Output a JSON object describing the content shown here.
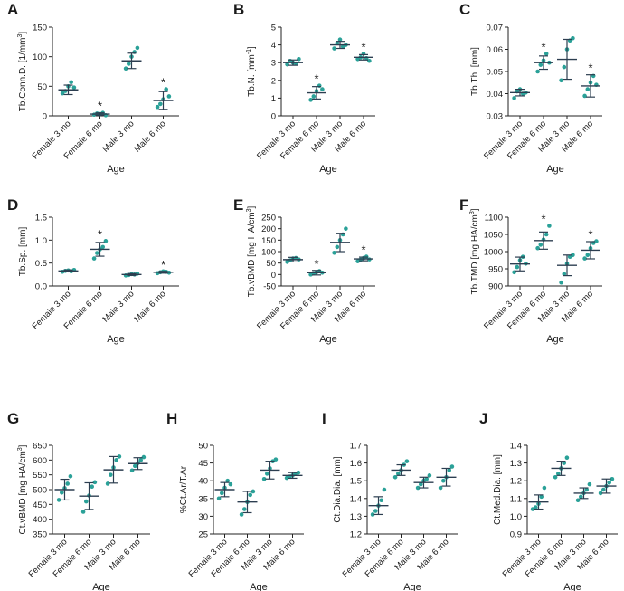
{
  "colors": {
    "point": "#2aa198",
    "bar": "#2c3e50",
    "axis": "#222222"
  },
  "chart_data": [
    {
      "type": "scatter",
      "panel": "A",
      "ylabel": "Tb.Conn.D. [1/mm",
      "ylabel_sup": "3",
      "ylabel_end": "]",
      "xlabel": "Age",
      "categories": [
        "Female 3 mo",
        "Female 6 mo",
        "Male 3 mo",
        "Male 6 mo"
      ],
      "yticks": [
        "0",
        "50",
        "100",
        "150"
      ],
      "yticks_val": [
        0,
        50,
        100,
        150
      ],
      "ylim": [
        0,
        150
      ],
      "means": [
        44,
        3,
        93,
        26
      ],
      "sd": [
        8,
        2,
        13,
        15
      ],
      "points": [
        [
          38,
          42,
          50,
          57,
          48
        ],
        [
          2,
          4,
          3,
          5,
          1
        ],
        [
          80,
          88,
          100,
          108,
          115
        ],
        [
          15,
          20,
          28,
          45,
          33
        ]
      ],
      "significance": [
        "",
        "*",
        "",
        "*"
      ]
    },
    {
      "type": "scatter",
      "panel": "B",
      "ylabel": "Tb.N. [mm",
      "ylabel_sup": "-1",
      "ylabel_end": "]",
      "xlabel": "Age",
      "categories": [
        "Female 3 mo",
        "Female 6 mo",
        "Male 3 mo",
        "Male 6 mo"
      ],
      "yticks": [
        "0",
        "1",
        "2",
        "3",
        "4",
        "5"
      ],
      "yticks_val": [
        0,
        1,
        2,
        3,
        4,
        5
      ],
      "ylim": [
        0,
        5
      ],
      "means": [
        3.0,
        1.3,
        4.0,
        3.3
      ],
      "sd": [
        0.15,
        0.35,
        0.2,
        0.15
      ],
      "points": [
        [
          2.9,
          3.1,
          3.0,
          2.95,
          3.2
        ],
        [
          0.9,
          1.1,
          1.4,
          1.7,
          1.5
        ],
        [
          3.8,
          4.1,
          4.3,
          3.9,
          4.0
        ],
        [
          3.2,
          3.3,
          3.5,
          3.25,
          3.1
        ]
      ],
      "significance": [
        "",
        "*",
        "",
        "*"
      ]
    },
    {
      "type": "scatter",
      "panel": "C",
      "ylabel": "Tb.Th. [mm]",
      "ylabel_sup": "",
      "ylabel_end": "",
      "xlabel": "Age",
      "categories": [
        "Female 3 mo",
        "Female 6 mo",
        "Male 3 mo",
        "Male 6 mo"
      ],
      "yticks": [
        "0.03",
        "0.04",
        "0.05",
        "0.06",
        "0.07"
      ],
      "yticks_val": [
        0.03,
        0.04,
        0.05,
        0.06,
        0.07
      ],
      "ylim": [
        0.03,
        0.07
      ],
      "means": [
        0.0405,
        0.054,
        0.0555,
        0.0435
      ],
      "sd": [
        0.0015,
        0.003,
        0.009,
        0.005
      ],
      "points": [
        [
          0.038,
          0.041,
          0.042,
          0.04,
          0.0405
        ],
        [
          0.05,
          0.053,
          0.055,
          0.058,
          0.054
        ],
        [
          0.046,
          0.052,
          0.06,
          0.064,
          0.065
        ],
        [
          0.039,
          0.042,
          0.045,
          0.048,
          0.044
        ]
      ],
      "significance": [
        "",
        "*",
        "",
        "*"
      ]
    },
    {
      "type": "scatter",
      "panel": "D",
      "ylabel": "Tb.Sp. [mm]",
      "ylabel_sup": "",
      "ylabel_end": "",
      "xlabel": "Age",
      "categories": [
        "Female 3 mo",
        "Female 6 mo",
        "Male 3 mo",
        "Male 6 mo"
      ],
      "yticks": [
        "0.0",
        "0.5",
        "1.0",
        "1.5"
      ],
      "yticks_val": [
        0.0,
        0.5,
        1.0,
        1.5
      ],
      "ylim": [
        0,
        1.5
      ],
      "means": [
        0.33,
        0.8,
        0.25,
        0.3
      ],
      "sd": [
        0.02,
        0.15,
        0.02,
        0.02
      ],
      "points": [
        [
          0.31,
          0.33,
          0.34,
          0.32,
          0.35
        ],
        [
          0.6,
          0.72,
          0.8,
          0.85,
          0.98
        ],
        [
          0.23,
          0.24,
          0.26,
          0.25,
          0.27
        ],
        [
          0.28,
          0.3,
          0.32,
          0.31,
          0.29
        ]
      ],
      "significance": [
        "",
        "*",
        "",
        "*"
      ]
    },
    {
      "type": "scatter",
      "panel": "E",
      "ylabel": "Tb.vBMD [mg HA/cm",
      "ylabel_sup": "3",
      "ylabel_end": "]",
      "xlabel": "Age",
      "categories": [
        "Female 3 mo",
        "Female 6 mo",
        "Male 3 mo",
        "Male 6 mo"
      ],
      "yticks": [
        "-50",
        "0",
        "50",
        "100",
        "150",
        "200",
        "250"
      ],
      "yticks_val": [
        -50,
        0,
        50,
        100,
        150,
        200,
        250
      ],
      "ylim": [
        -50,
        250
      ],
      "means": [
        65,
        8,
        140,
        68
      ],
      "sd": [
        10,
        10,
        40,
        8
      ],
      "points": [
        [
          55,
          62,
          70,
          72,
          66
        ],
        [
          0,
          5,
          10,
          15,
          8
        ],
        [
          95,
          120,
          150,
          175,
          200
        ],
        [
          58,
          65,
          72,
          78,
          66
        ]
      ],
      "significance": [
        "",
        "*",
        "",
        "*"
      ]
    },
    {
      "type": "scatter",
      "panel": "F",
      "ylabel": "Tb.TMD [mg HA/cm",
      "ylabel_sup": "3",
      "ylabel_end": "]",
      "xlabel": "Age",
      "categories": [
        "Female 3 mo",
        "Female 6 mo",
        "Male 3 mo",
        "Male 6 mo"
      ],
      "yticks": [
        "900",
        "950",
        "1000",
        "1050",
        "1100"
      ],
      "yticks_val": [
        900,
        950,
        1000,
        1050,
        1100
      ],
      "ylim": [
        900,
        1100
      ],
      "means": [
        964,
        1032,
        960,
        1004
      ],
      "sd": [
        20,
        25,
        30,
        25
      ],
      "points": [
        [
          940,
          955,
          975,
          985,
          965
        ],
        [
          1010,
          1020,
          1035,
          1050,
          1075
        ],
        [
          910,
          935,
          965,
          985,
          990
        ],
        [
          980,
          990,
          1010,
          1025,
          1030
        ]
      ],
      "significance": [
        "",
        "*",
        "",
        "*"
      ]
    },
    {
      "type": "scatter",
      "panel": "G",
      "ylabel": "Ct.vBMD [mg HA/cm",
      "ylabel_sup": "3",
      "ylabel_end": "]",
      "xlabel": "Age",
      "categories": [
        "Female 3 mo",
        "Female 6 mo",
        "Male 3 mo",
        "Male 6 mo"
      ],
      "yticks": [
        "350",
        "400",
        "450",
        "500",
        "550",
        "600",
        "650"
      ],
      "yticks_val": [
        350,
        400,
        450,
        500,
        550,
        600,
        650
      ],
      "ylim": [
        350,
        650
      ],
      "means": [
        500,
        478,
        567,
        588
      ],
      "sd": [
        35,
        45,
        45,
        20
      ],
      "points": [
        [
          465,
          490,
          505,
          520,
          545
        ],
        [
          425,
          460,
          480,
          510,
          525
        ],
        [
          520,
          550,
          575,
          600,
          612
        ],
        [
          565,
          580,
          590,
          600,
          610
        ]
      ],
      "significance": [
        "",
        "",
        "",
        ""
      ]
    },
    {
      "type": "scatter",
      "panel": "H",
      "ylabel": "%Ct.Ar/T.Ar",
      "ylabel_sup": "",
      "ylabel_end": "",
      "xlabel": "Age",
      "categories": [
        "Female 3 mo",
        "Female 6 mo",
        "Male 3 mo",
        "Male 6 mo"
      ],
      "yticks": [
        "25",
        "30",
        "35",
        "40",
        "45",
        "50"
      ],
      "yticks_val": [
        25,
        30,
        35,
        40,
        45,
        50
      ],
      "ylim": [
        25,
        50
      ],
      "means": [
        37.5,
        34,
        43,
        41.5
      ],
      "sd": [
        2,
        3,
        2.5,
        0.8
      ],
      "points": [
        [
          35,
          36.5,
          38,
          40,
          39
        ],
        [
          30.5,
          32,
          34,
          36,
          37
        ],
        [
          40.5,
          42,
          43.5,
          45.5,
          46
        ],
        [
          40.8,
          41.2,
          41.5,
          42,
          42.3
        ]
      ],
      "significance": [
        "",
        "",
        "",
        ""
      ]
    },
    {
      "type": "scatter",
      "panel": "I",
      "ylabel": "Ct.Dia.Dia. [mm]",
      "ylabel_sup": "",
      "ylabel_end": "",
      "xlabel": "Age",
      "categories": [
        "Female 3 mo",
        "Female 6 mo",
        "Male 3 mo",
        "Male 6 mo"
      ],
      "yticks": [
        "1.2",
        "1.3",
        "1.4",
        "1.5",
        "1.6",
        "1.7"
      ],
      "yticks_val": [
        1.2,
        1.3,
        1.4,
        1.5,
        1.6,
        1.7
      ],
      "ylim": [
        1.2,
        1.7
      ],
      "means": [
        1.36,
        1.56,
        1.49,
        1.52
      ],
      "sd": [
        0.05,
        0.03,
        0.03,
        0.05
      ],
      "points": [
        [
          1.31,
          1.33,
          1.36,
          1.39,
          1.45
        ],
        [
          1.52,
          1.54,
          1.56,
          1.59,
          1.61
        ],
        [
          1.46,
          1.48,
          1.5,
          1.51,
          1.53
        ],
        [
          1.46,
          1.5,
          1.52,
          1.56,
          1.58
        ]
      ],
      "significance": [
        "",
        "",
        "",
        ""
      ]
    },
    {
      "type": "scatter",
      "panel": "J",
      "ylabel": "Ct.Med.Dia. [mm]",
      "ylabel_sup": "",
      "ylabel_end": "",
      "xlabel": "Age",
      "categories": [
        "Female 3 mo",
        "Female 6 mo",
        "Male 3 mo",
        "Male 6 mo"
      ],
      "yticks": [
        "0.9",
        "1.0",
        "1.1",
        "1.2",
        "1.3",
        "1.4"
      ],
      "yticks_val": [
        0.9,
        1.0,
        1.1,
        1.2,
        1.3,
        1.4
      ],
      "ylim": [
        0.9,
        1.4
      ],
      "means": [
        1.08,
        1.27,
        1.13,
        1.17
      ],
      "sd": [
        0.04,
        0.04,
        0.03,
        0.04
      ],
      "points": [
        [
          1.04,
          1.05,
          1.07,
          1.11,
          1.16
        ],
        [
          1.22,
          1.24,
          1.27,
          1.3,
          1.33
        ],
        [
          1.09,
          1.11,
          1.13,
          1.15,
          1.18
        ],
        [
          1.13,
          1.15,
          1.17,
          1.19,
          1.21
        ]
      ],
      "significance": [
        "",
        "",
        "",
        ""
      ]
    }
  ]
}
